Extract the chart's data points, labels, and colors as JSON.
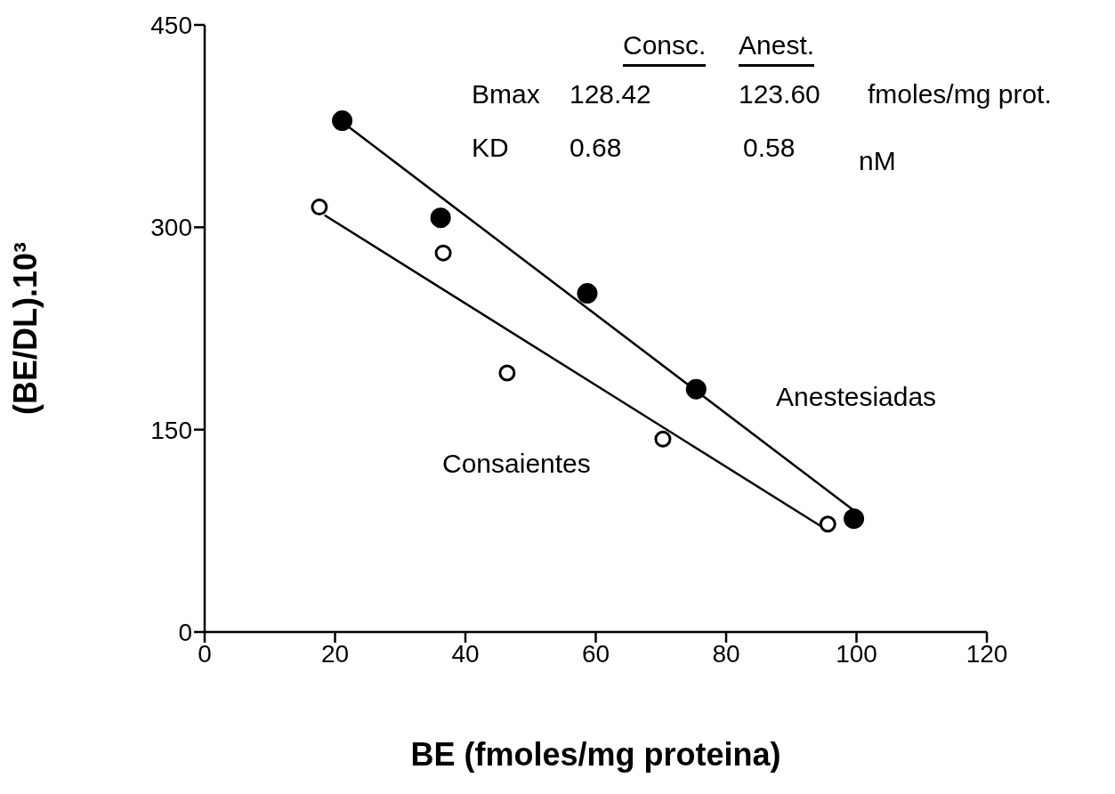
{
  "chart_data": {
    "type": "scatter",
    "xlabel": "BE (fmoles/mg proteina)",
    "ylabel": "(BE/DL).10³",
    "xlim": [
      0,
      120
    ],
    "xticks": [
      0,
      20,
      40,
      60,
      80,
      100,
      120
    ],
    "ylim": [
      0,
      450
    ],
    "yticks": [
      0,
      150,
      300,
      450
    ],
    "grid": false,
    "legend": false,
    "marker": "circle",
    "series": [
      {
        "type": "scatter",
        "color": "#000000",
        "x": [
          21.1,
          36.2,
          58.7,
          75.4,
          99.6
        ],
        "values": [
          379,
          307,
          251,
          180,
          84
        ]
      },
      {
        "type": "scatter",
        "color": "#000000",
        "x": [
          17.6,
          36.6,
          46.4,
          70.3,
          95.6
        ],
        "values": [
          315,
          281,
          192,
          143,
          80
        ]
      },
      {
        "type": "line",
        "color": "#000000",
        "marker": "none",
        "x": [
          21.1,
          99.6
        ],
        "values": [
          378,
          90
        ]
      },
      {
        "type": "line",
        "color": "#000000",
        "marker": "none",
        "x": [
          18.4,
          95
        ],
        "values": [
          309,
          77
        ]
      }
    ],
    "annotations": [
      "Anestesiadas",
      "Consaientes",
      "Consc.",
      "Anest.",
      "Bmax",
      "128.42",
      "123.60",
      "fmoles/mg prot.",
      "KD",
      "0.68",
      "0.58",
      "nM"
    ]
  }
}
